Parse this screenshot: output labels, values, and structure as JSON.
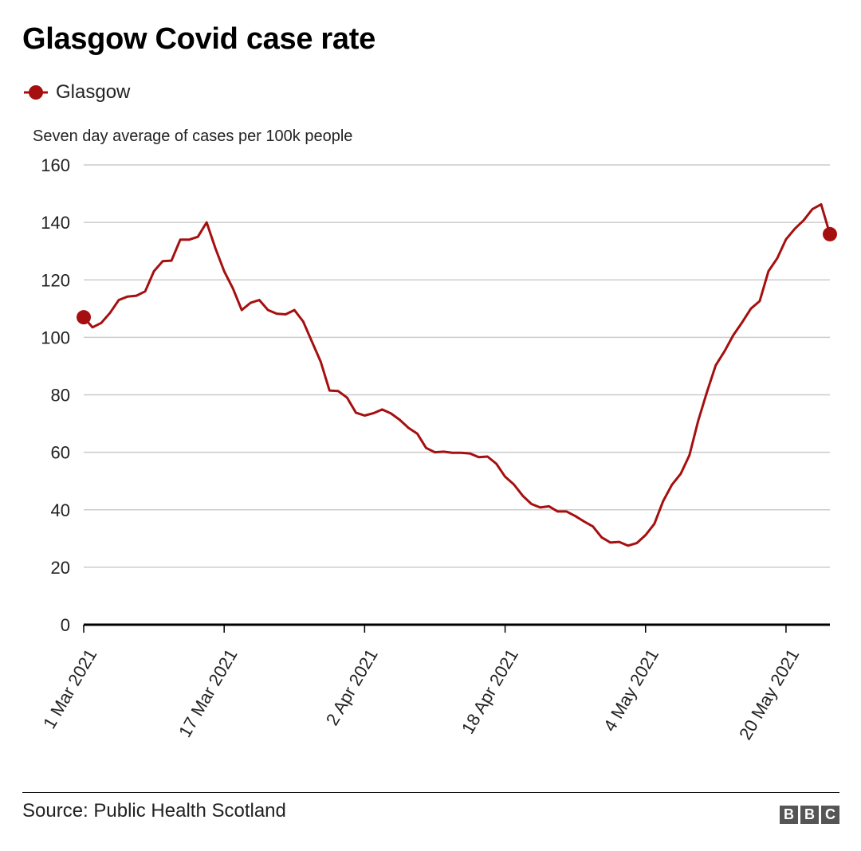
{
  "title": "Glasgow Covid case rate",
  "legend": {
    "label": "Glasgow",
    "color": "#a50f0f"
  },
  "axis_title": "Seven day average of cases per 100k people",
  "source": "Source: Public Health Scotland",
  "logo": {
    "letters": [
      "B",
      "B",
      "C"
    ]
  },
  "chart_data": {
    "type": "line",
    "title": "Glasgow Covid case rate",
    "xlabel": "",
    "ylabel": "Seven day average of cases per 100k people",
    "ylim": [
      0,
      160
    ],
    "yticks": [
      0,
      20,
      40,
      60,
      80,
      100,
      120,
      140,
      160
    ],
    "grid": true,
    "x_start": "1 Mar 2021",
    "x_end": "26 May 2021",
    "xtick_labels": [
      "1 Mar 2021",
      "17 Mar 2021",
      "2 Apr 2021",
      "18 Apr 2021",
      "4 May 2021",
      "20 May 2021"
    ],
    "xtick_day_index": [
      0,
      16,
      32,
      48,
      64,
      80
    ],
    "series": [
      {
        "name": "Glasgow",
        "color": "#a50f0f",
        "values": [
          107,
          103.5,
          105,
          108.5,
          113,
          114.2,
          114.5,
          116,
          123,
          126.5,
          126.7,
          134,
          134,
          135,
          140,
          131,
          123,
          117,
          109.5,
          112,
          113,
          109.5,
          108.2,
          108,
          109.5,
          105.5,
          98.5,
          91.5,
          81.5,
          81.3,
          79,
          73.8,
          72.8,
          73.6,
          74.9,
          73.5,
          71.3,
          68.5,
          66.5,
          61.5,
          60,
          60.2,
          59.8,
          59.8,
          59.6,
          58.3,
          58.5,
          56,
          51.5,
          48.8,
          44.9,
          42,
          40.8,
          41.2,
          39.4,
          39.4,
          37.8,
          35.9,
          34.2,
          30.4,
          28.6,
          28.8,
          27.5,
          28.4,
          31.2,
          35.1,
          43,
          48.7,
          52.5,
          59,
          71,
          81,
          90.3,
          95.2,
          100.8,
          105.2,
          110,
          112.6,
          123,
          127.5,
          134.1,
          137.8,
          140.7,
          144.6,
          146.3,
          135.9
        ]
      }
    ]
  }
}
